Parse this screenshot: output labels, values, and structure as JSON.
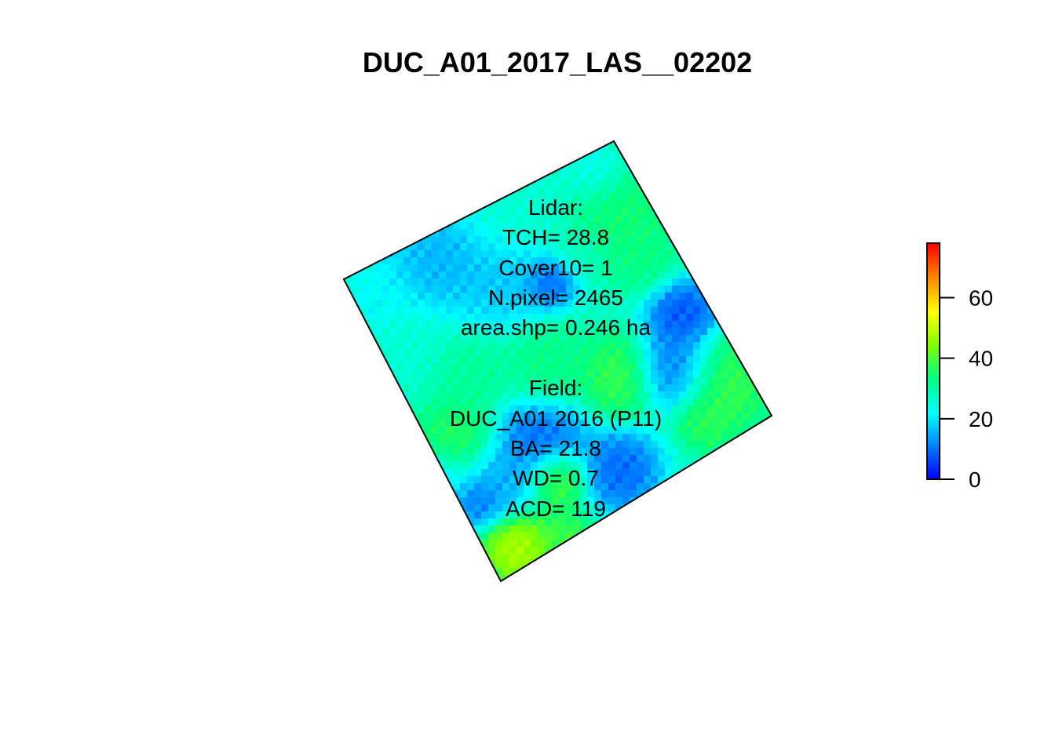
{
  "chart_data": {
    "type": "heatmap",
    "title": "DUC_A01_2017_LAS__02202",
    "description": "Rotated raster of lidar canopy height within a plot polygon, colored by a blue-to-red scale.",
    "polygon_corners_note": "plot outline is a rotated square",
    "colorscale": {
      "colors": [
        "#0000FF",
        "#0080FF",
        "#00FFFF",
        "#00FF80",
        "#80FF00",
        "#FFFF00",
        "#FF8000",
        "#FF0000"
      ],
      "range": [
        0,
        78
      ],
      "ticks": [
        0,
        20,
        40,
        60
      ],
      "tick_labels": [
        "0",
        "20",
        "40",
        "60"
      ]
    },
    "annotations": {
      "lidar_header": "Lidar:",
      "tch": "TCH= 28.8",
      "cover": "Cover10= 1",
      "npixel": "N.pixel= 2465",
      "area": "area.shp= 0.246 ha",
      "field_header": "Field:",
      "field_plot": "DUC_A01 2016 (P11)",
      "ba": "BA= 21.8",
      "wd": "WD= 0.7",
      "acd": "ACD= 119"
    },
    "stats": {
      "TCH": 28.8,
      "Cover10": 1,
      "N_pixel": 2465,
      "area_ha": 0.246,
      "BA": 21.8,
      "WD": 0.7,
      "ACD": 119
    }
  }
}
